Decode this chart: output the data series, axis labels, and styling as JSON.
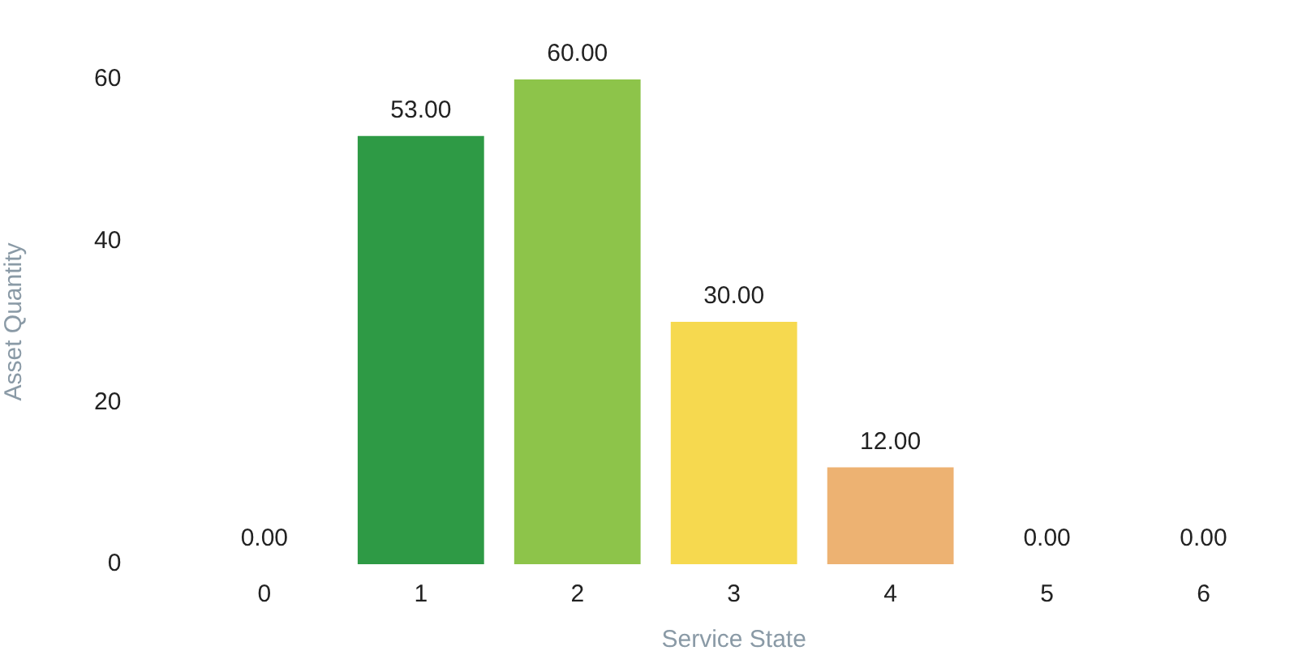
{
  "chart_data": {
    "type": "bar",
    "xlabel": "Service State",
    "ylabel": "Asset Quantity",
    "categories": [
      "0",
      "1",
      "2",
      "3",
      "4",
      "5",
      "6"
    ],
    "values": [
      0,
      53,
      60,
      30,
      12,
      0,
      0
    ],
    "value_labels": [
      "0.00",
      "53.00",
      "60.00",
      "30.00",
      "12.00",
      "0.00",
      "0.00"
    ],
    "colors": [
      "#2e9a45",
      "#2e9a45",
      "#8dc44a",
      "#f6d94f",
      "#edb272",
      "#e8865e",
      "#d9534f"
    ],
    "ylim": [
      0,
      60
    ],
    "yticks": [
      0,
      20,
      40,
      60
    ],
    "grid": false,
    "legend": false
  }
}
